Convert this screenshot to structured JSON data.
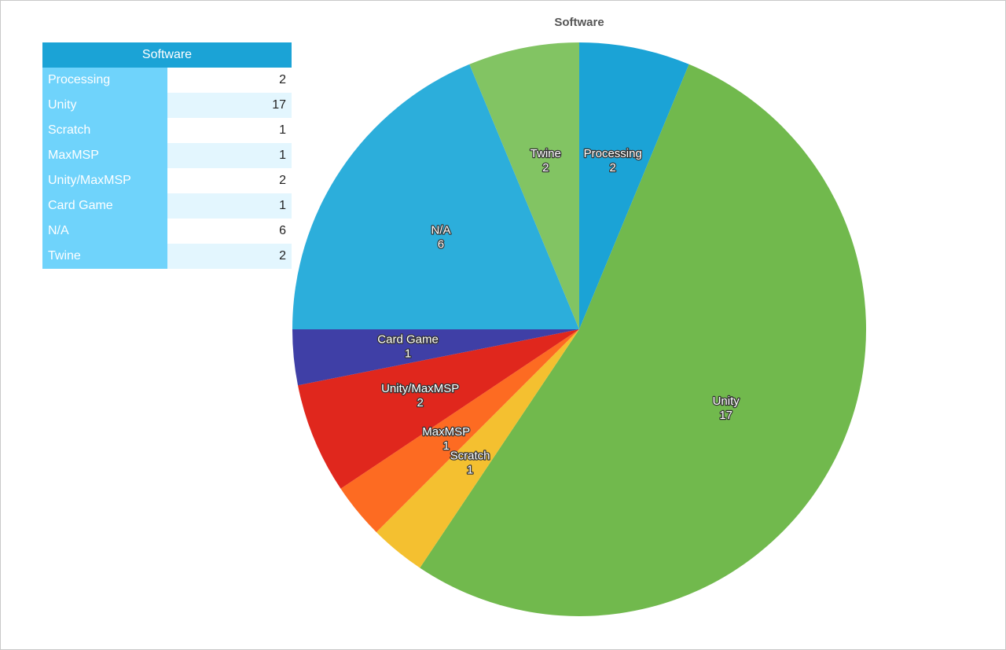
{
  "chart_data": {
    "type": "pie",
    "title": "Software",
    "slices": [
      {
        "label": "Processing",
        "value": 2,
        "color": "#1ba3d6"
      },
      {
        "label": "Unity",
        "value": 17,
        "color": "#71b94d"
      },
      {
        "label": "Scratch",
        "value": 1,
        "color": "#f4c030"
      },
      {
        "label": "MaxMSP",
        "value": 1,
        "color": "#fd6b22"
      },
      {
        "label": "Unity/MaxMSP",
        "value": 2,
        "color": "#e0271d"
      },
      {
        "label": "Card Game",
        "value": 1,
        "color": "#3f3fa6"
      },
      {
        "label": "N/A",
        "value": 6,
        "color": "#2caedb"
      },
      {
        "label": "Twine",
        "value": 2,
        "color": "#82c463"
      }
    ]
  },
  "table": {
    "header": "Software",
    "rows": [
      {
        "label": "Processing",
        "value": "2"
      },
      {
        "label": "Unity",
        "value": "17"
      },
      {
        "label": "Scratch",
        "value": "1"
      },
      {
        "label": "MaxMSP",
        "value": "1"
      },
      {
        "label": "Unity/MaxMSP",
        "value": "2"
      },
      {
        "label": "Card Game",
        "value": "1"
      },
      {
        "label": "N/A",
        "value": "6"
      },
      {
        "label": "Twine",
        "value": "2"
      }
    ]
  }
}
